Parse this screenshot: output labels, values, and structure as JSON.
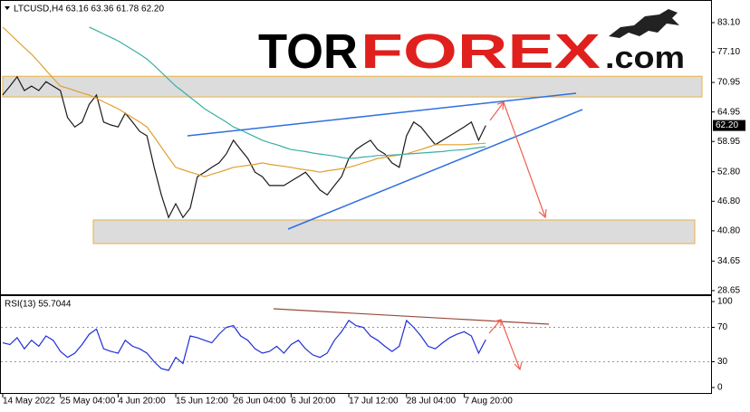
{
  "logo": {
    "tor": "TOR",
    "forex": "FOREX",
    "com": ".com"
  },
  "chart_data": [
    {
      "type": "line",
      "title": "LTCUSD,H4 63.16 63.36 61.78 62.20",
      "categories": [
        "14 May 2022",
        null,
        null,
        null,
        null,
        null,
        null,
        null,
        "25 May 04:00",
        null,
        null,
        null,
        null,
        null,
        null,
        null,
        "4 Jun 20:00",
        null,
        null,
        null,
        null,
        null,
        null,
        null,
        "15 Jun 12:00",
        null,
        null,
        null,
        null,
        null,
        null,
        null,
        "26 Jun 04:00",
        null,
        null,
        null,
        null,
        null,
        null,
        null,
        "6 Jul 20:00",
        null,
        null,
        null,
        null,
        null,
        null,
        null,
        "17 Jul 12:00",
        null,
        null,
        null,
        null,
        null,
        null,
        null,
        "28 Jul 04:00",
        null,
        null,
        null,
        null,
        null,
        null,
        null,
        "7 Aug 20:00",
        null,
        null,
        null
      ],
      "series": [
        {
          "color": "#1a1a1a",
          "values": [
            68.4,
            70.2,
            72.1,
            69.3,
            70.2,
            69.3,
            71.1,
            70.2,
            69.3,
            63.8,
            61.9,
            62.9,
            66.5,
            68.4,
            62.9,
            62.3,
            61.9,
            64.7,
            62.9,
            61.0,
            60.1,
            53.7,
            48.1,
            43.5,
            46.3,
            43.5,
            45.4,
            51.8,
            52.7,
            53.7,
            54.6,
            56.4,
            59.2,
            57.3,
            55.5,
            52.7,
            51.8,
            50.0,
            50.0,
            50.0,
            50.9,
            51.8,
            52.7,
            50.9,
            49.1,
            48.1,
            50.0,
            51.8,
            55.5,
            57.3,
            58.3,
            59.2,
            57.3,
            56.4,
            54.6,
            53.7,
            60.1,
            62.9,
            61.9,
            60.1,
            58.3,
            59.2,
            60.1,
            61.0,
            61.9,
            62.9,
            59.2,
            62.2
          ]
        },
        {
          "color": "#e0a030",
          "values": [
            82.2,
            80.8,
            79.4,
            78.0,
            76.7,
            75.1,
            73.4,
            71.8,
            70.2,
            69.8,
            69.3,
            68.8,
            68.4,
            67.7,
            67.0,
            66.3,
            65.6,
            64.7,
            63.8,
            62.9,
            61.9,
            59.9,
            57.8,
            55.7,
            53.7,
            53.2,
            52.7,
            52.3,
            51.8,
            52.3,
            52.7,
            53.2,
            53.7,
            53.9,
            54.1,
            54.3,
            54.6,
            54.3,
            54.1,
            53.9,
            53.7,
            53.4,
            53.2,
            53.0,
            52.7,
            53.0,
            53.2,
            53.4,
            53.7,
            54.1,
            54.6,
            55.0,
            55.5,
            55.7,
            56.0,
            56.2,
            56.4,
            56.9,
            57.3,
            57.8,
            58.3,
            58.3,
            58.3,
            58.3,
            58.3,
            58.4,
            58.5,
            58.6
          ]
        },
        {
          "color": "#3aaea6",
          "values": [
            null,
            null,
            null,
            null,
            null,
            null,
            null,
            null,
            null,
            null,
            null,
            null,
            82.2,
            81.5,
            80.8,
            80.1,
            79.4,
            78.5,
            77.6,
            76.7,
            75.7,
            74.4,
            73.0,
            71.6,
            70.2,
            69.1,
            67.9,
            66.8,
            65.6,
            64.7,
            63.8,
            62.9,
            61.9,
            61.3,
            60.6,
            59.9,
            59.2,
            58.7,
            58.3,
            57.8,
            57.3,
            57.1,
            56.9,
            56.6,
            56.4,
            56.2,
            56.0,
            55.7,
            55.5,
            55.6,
            55.8,
            55.9,
            56.1,
            56.1,
            56.2,
            56.3,
            56.4,
            56.5,
            56.6,
            56.7,
            56.8,
            56.9,
            57.1,
            57.2,
            57.3,
            57.5,
            57.7,
            57.9
          ]
        }
      ],
      "zones": [
        {
          "low": 68.0,
          "high": 72.2,
          "color": "#dcdcdc"
        },
        {
          "low": 38.2,
          "high": 43.0,
          "color": "#dcdcdc"
        }
      ],
      "last_price": {
        "value": 62.2,
        "label": "62.20"
      },
      "ylim": [
        27.9,
        87.7
      ],
      "yticks": [
        {
          "value": 83.1,
          "label": "83.10"
        },
        {
          "value": 77.1,
          "label": "77.10"
        },
        70.95,
        64.95,
        58.95,
        {
          "value": 52.8,
          "label": "52.80"
        },
        {
          "value": 46.8,
          "label": "46.80"
        },
        {
          "value": 40.8,
          "label": "40.80"
        },
        34.65,
        28.65
      ]
    },
    {
      "type": "line",
      "title": "RSI(13) 55.7044",
      "color": "#1f2fd6",
      "values": [
        52,
        50,
        58,
        45,
        55,
        48,
        60,
        55,
        42,
        35,
        40,
        50,
        62,
        68,
        45,
        42,
        40,
        55,
        48,
        45,
        40,
        30,
        22,
        20,
        35,
        28,
        60,
        58,
        55,
        52,
        62,
        70,
        72,
        60,
        55,
        45,
        40,
        42,
        48,
        40,
        50,
        55,
        45,
        38,
        35,
        40,
        55,
        65,
        78,
        72,
        70,
        60,
        55,
        48,
        42,
        48,
        78,
        70,
        60,
        48,
        45,
        52,
        58,
        62,
        65,
        60,
        40,
        55.7
      ],
      "levels": [
        30,
        70
      ],
      "ylim": [
        -7.4,
        107.4
      ],
      "yticks": [
        100,
        70,
        30,
        0
      ]
    }
  ]
}
